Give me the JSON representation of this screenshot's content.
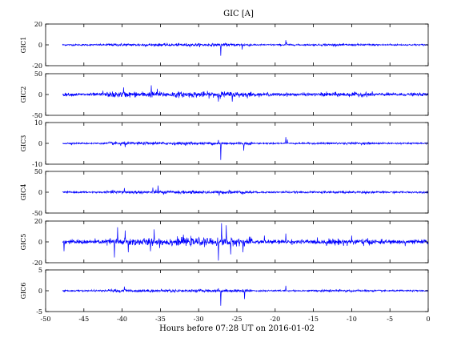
{
  "chart_data": {
    "type": "line",
    "title": "GIC [A]",
    "xlabel": "Hours before  07:28 UT on 2016-01-02",
    "xlim": [
      -50,
      0
    ],
    "xticks": [
      -50,
      -45,
      -40,
      -35,
      -30,
      -25,
      -20,
      -15,
      -10,
      -5,
      0
    ],
    "data_x_range": [
      -47.8,
      0
    ],
    "line_color": "#0000ff",
    "panels": [
      {
        "ylabel": "GIC1",
        "ylim": [
          -20,
          20
        ],
        "yticks": [
          -20,
          0,
          20
        ],
        "noise": 0.35,
        "events": [
          {
            "x": -41.5,
            "y": 0.5
          },
          {
            "x": -35.8,
            "y": -1.2
          },
          {
            "x": -33.2,
            "y": -0.8
          },
          {
            "x": -27.1,
            "y": -10.5
          },
          {
            "x": -26.5,
            "y": 2.0
          },
          {
            "x": -24.3,
            "y": -4.5
          },
          {
            "x": -18.6,
            "y": 4.5
          },
          {
            "x": -18.5,
            "y": 2.5
          },
          {
            "x": -5.0,
            "y": 1.0
          }
        ]
      },
      {
        "ylabel": "GIC2",
        "ylim": [
          -50,
          50
        ],
        "yticks": [
          -50,
          0,
          50
        ],
        "noise": 1.8,
        "events": [
          {
            "x": -42.5,
            "y": 9
          },
          {
            "x": -41.0,
            "y": -7
          },
          {
            "x": -39.8,
            "y": 17
          },
          {
            "x": -36.2,
            "y": 22
          },
          {
            "x": -35.4,
            "y": 14
          },
          {
            "x": -33.0,
            "y": -7
          },
          {
            "x": -27.4,
            "y": -17
          },
          {
            "x": -27.0,
            "y": 7
          },
          {
            "x": -25.6,
            "y": -17
          },
          {
            "x": -21.0,
            "y": 6
          },
          {
            "x": -18.5,
            "y": 5
          },
          {
            "x": -6.0,
            "y": 4
          }
        ]
      },
      {
        "ylabel": "GIC3",
        "ylim": [
          -10,
          10
        ],
        "yticks": [
          -10,
          0,
          10
        ],
        "noise": 0.18,
        "events": [
          {
            "x": -40.2,
            "y": -1.2
          },
          {
            "x": -39.6,
            "y": -1.8
          },
          {
            "x": -35.6,
            "y": 0.9
          },
          {
            "x": -31.0,
            "y": 0.6
          },
          {
            "x": -27.1,
            "y": -8.0
          },
          {
            "x": -27.4,
            "y": 1.6
          },
          {
            "x": -24.1,
            "y": -3.5
          },
          {
            "x": -18.6,
            "y": 3.0
          },
          {
            "x": -18.4,
            "y": 1.8
          },
          {
            "x": -10.0,
            "y": 0.5
          }
        ]
      },
      {
        "ylabel": "GIC4",
        "ylim": [
          -50,
          50
        ],
        "yticks": [
          -50,
          0,
          50
        ],
        "noise": 1.0,
        "events": [
          {
            "x": -41.0,
            "y": 4
          },
          {
            "x": -39.7,
            "y": 10
          },
          {
            "x": -36.0,
            "y": 11
          },
          {
            "x": -35.3,
            "y": 16
          },
          {
            "x": -34.6,
            "y": -6
          },
          {
            "x": -27.3,
            "y": -8
          },
          {
            "x": -26.0,
            "y": 6
          },
          {
            "x": -18.6,
            "y": 4
          },
          {
            "x": -9.0,
            "y": 2
          }
        ]
      },
      {
        "ylabel": "GIC5",
        "ylim": [
          -20,
          20
        ],
        "yticks": [
          -20,
          0,
          20
        ],
        "noise": 1.0,
        "events": [
          {
            "x": -47.6,
            "y": -9
          },
          {
            "x": -41.0,
            "y": -15
          },
          {
            "x": -40.6,
            "y": 14
          },
          {
            "x": -39.6,
            "y": 11
          },
          {
            "x": -39.2,
            "y": -10
          },
          {
            "x": -36.3,
            "y": -9
          },
          {
            "x": -35.8,
            "y": 12
          },
          {
            "x": -35.1,
            "y": -6
          },
          {
            "x": -32.0,
            "y": 7
          },
          {
            "x": -27.4,
            "y": -18
          },
          {
            "x": -27.0,
            "y": 18
          },
          {
            "x": -26.4,
            "y": 16
          },
          {
            "x": -25.8,
            "y": -12
          },
          {
            "x": -24.2,
            "y": -10
          },
          {
            "x": -21.4,
            "y": 6
          },
          {
            "x": -18.6,
            "y": 8
          },
          {
            "x": -10.0,
            "y": 6
          },
          {
            "x": -3.0,
            "y": -4
          }
        ]
      },
      {
        "ylabel": "GIC6",
        "ylim": [
          -5,
          5
        ],
        "yticks": [
          -5,
          0,
          5
        ],
        "noise": 0.09,
        "events": [
          {
            "x": -40.3,
            "y": -0.5
          },
          {
            "x": -39.7,
            "y": 1.0
          },
          {
            "x": -33.5,
            "y": -0.4
          },
          {
            "x": -27.1,
            "y": -3.6
          },
          {
            "x": -27.4,
            "y": 0.6
          },
          {
            "x": -24.0,
            "y": -2.0
          },
          {
            "x": -18.6,
            "y": 1.2
          },
          {
            "x": -10.0,
            "y": -0.3
          }
        ]
      }
    ]
  }
}
